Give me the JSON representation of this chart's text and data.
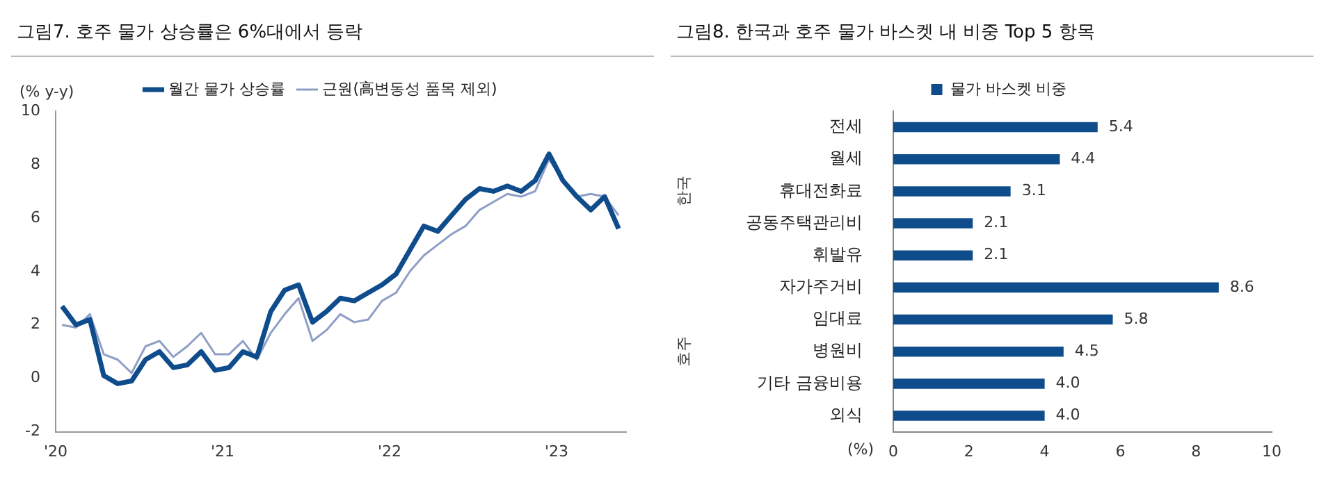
{
  "chart_data": [
    {
      "type": "line",
      "title": "그림7. 호주 물가 상승률은 6%대에서 등락",
      "ylabel": "(% y-y)",
      "x": [
        "2020-01-15",
        "2020-02-15",
        "2020-03-15",
        "2020-04-15",
        "2020-05-15",
        "2020-06-15",
        "2020-07-15",
        "2020-08-15",
        "2020-09-15",
        "2020-10-15",
        "2020-11-15",
        "2020-12-15",
        "2021-01-15",
        "2021-02-15",
        "2021-03-15",
        "2021-04-15",
        "2021-05-15",
        "2021-06-15",
        "2021-07-15",
        "2021-08-15",
        "2021-09-15",
        "2021-10-15",
        "2021-11-15",
        "2021-12-15",
        "2022-01-15",
        "2022-02-15",
        "2022-03-15",
        "2022-04-15",
        "2022-05-15",
        "2022-06-15",
        "2022-07-15",
        "2022-08-15",
        "2022-09-15",
        "2022-10-15",
        "2022-11-15",
        "2022-12-15",
        "2023-01-15",
        "2023-02-15",
        "2023-03-15",
        "2023-04-15",
        "2023-05-15"
      ],
      "series": [
        {
          "name": "월간 물가 상승률",
          "color": "#0f4c8c",
          "values": [
            2.7,
            2.0,
            2.2,
            0.1,
            -0.2,
            -0.1,
            0.7,
            1.0,
            0.4,
            0.5,
            1.0,
            0.3,
            0.4,
            1.0,
            0.8,
            2.5,
            3.3,
            3.5,
            2.1,
            2.5,
            3.0,
            2.9,
            3.2,
            3.5,
            3.9,
            4.8,
            5.7,
            5.5,
            6.1,
            6.7,
            7.1,
            7.0,
            7.2,
            7.0,
            7.4,
            8.4,
            7.4,
            6.8,
            6.3,
            6.8,
            5.6
          ]
        },
        {
          "name": "근원(高변동성 품목 제외)",
          "color": "#8e9ec6",
          "values": [
            2.0,
            1.9,
            2.4,
            0.9,
            0.7,
            0.2,
            1.2,
            1.4,
            0.8,
            1.2,
            1.7,
            0.9,
            0.9,
            1.4,
            0.7,
            1.7,
            2.4,
            3.0,
            1.4,
            1.8,
            2.4,
            2.1,
            2.2,
            2.9,
            3.2,
            4.0,
            4.6,
            5.0,
            5.4,
            5.7,
            6.3,
            6.6,
            6.9,
            6.8,
            7.0,
            8.2,
            7.4,
            6.8,
            6.9,
            6.8,
            6.1
          ]
        }
      ],
      "xlim": [
        "2020-01-01",
        "2023-06-01"
      ],
      "xticks": [
        {
          "value": "2020-01-01",
          "label": "'20"
        },
        {
          "value": "2021-01-01",
          "label": "'21"
        },
        {
          "value": "2022-01-01",
          "label": "'22"
        },
        {
          "value": "2023-01-01",
          "label": "'23"
        }
      ],
      "ylim": [
        -2,
        10
      ],
      "yticks": [
        -2,
        0,
        2,
        4,
        6,
        8,
        10
      ],
      "legend": "top",
      "marker": "none",
      "line_style": "solid"
    },
    {
      "type": "bar",
      "orientation": "horizontal",
      "title": "그림8. 한국과 호주 물가 바스켓 내 비중 Top 5 항목",
      "xlabel": "(%)",
      "categories": [
        "전세",
        "월세",
        "휴대전화료",
        "공동주택관리비",
        "휘발유",
        "자가주거비",
        "임대료",
        "병원비",
        "기타 금융비용",
        "외식"
      ],
      "series": [
        {
          "name": "물가 바스켓 비중",
          "color": "#0f4c8c",
          "values": [
            5.4,
            4.4,
            3.1,
            2.1,
            2.1,
            8.6,
            5.8,
            4.5,
            4.0,
            4.0
          ],
          "value_labels": [
            "5.4",
            "4.4",
            "3.1",
            "2.1",
            "2.1",
            "8.6",
            "5.8",
            "4.5",
            "4.0",
            "4.0"
          ]
        }
      ],
      "xlim": [
        0,
        10
      ],
      "xticks": [
        0,
        2,
        4,
        6,
        8,
        10
      ],
      "legend": "top",
      "annotations": [
        "한국",
        "호주"
      ]
    }
  ]
}
